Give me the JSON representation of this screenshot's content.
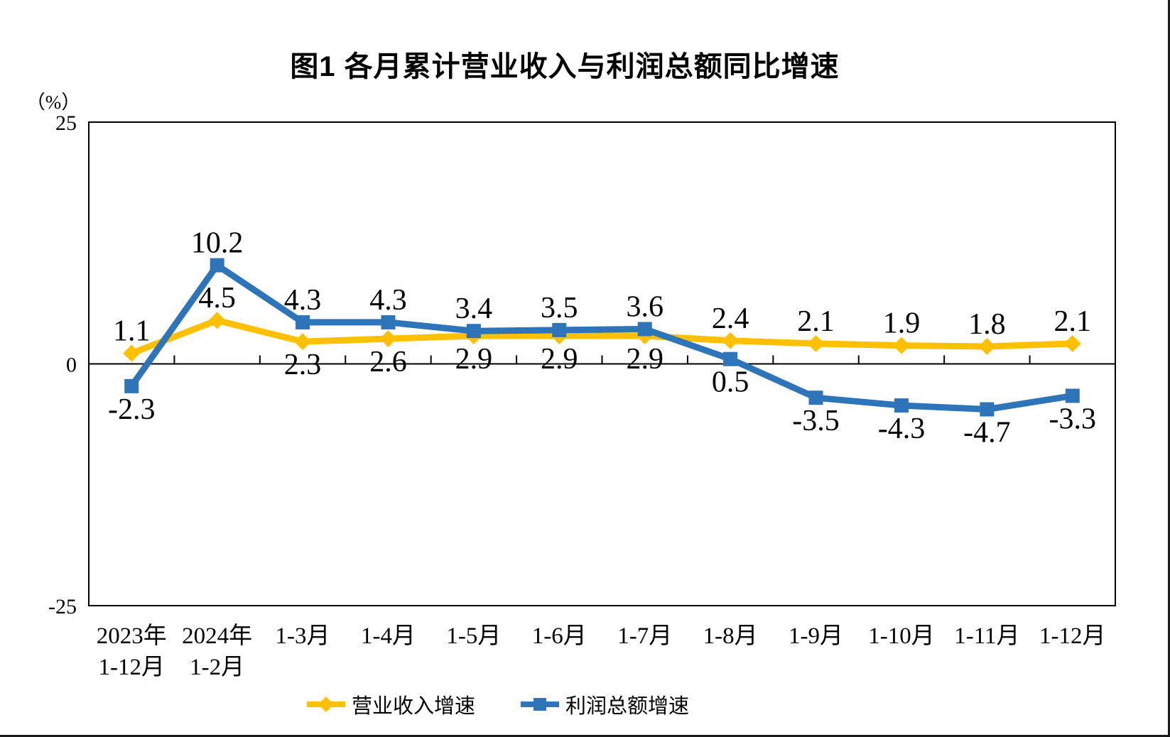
{
  "chart_data": {
    "type": "line",
    "title": "图1  各月累计营业收入与利润总额同比增速",
    "ylabel": "（%）",
    "xlabel": "",
    "ylim": [
      -25,
      25
    ],
    "yticks": [
      25,
      0,
      -25
    ],
    "ytick_labels": [
      "25",
      "0",
      "-25"
    ],
    "grid": false,
    "legend_position": "bottom",
    "categories": [
      [
        "2023年",
        "1-12月"
      ],
      [
        "2024年",
        "1-2月"
      ],
      [
        "1-3月"
      ],
      [
        "1-4月"
      ],
      [
        "1-5月"
      ],
      [
        "1-6月"
      ],
      [
        "1-7月"
      ],
      [
        "1-8月"
      ],
      [
        "1-9月"
      ],
      [
        "1-10月"
      ],
      [
        "1-11月"
      ],
      [
        "1-12月"
      ]
    ],
    "series": [
      {
        "key": "revenue-growth",
        "name": "营业收入增速",
        "color": "#FFC000",
        "marker": "diamond",
        "values": [
          1.1,
          4.5,
          2.3,
          2.6,
          2.9,
          2.9,
          2.9,
          2.4,
          2.1,
          1.9,
          1.8,
          2.1
        ],
        "label_positions": [
          "above",
          "above",
          "below",
          "below",
          "below",
          "below",
          "below",
          "above",
          "above",
          "above",
          "above",
          "above"
        ]
      },
      {
        "key": "profit-growth",
        "name": "利润总额增速",
        "color": "#2E74B9",
        "marker": "square",
        "values": [
          -2.3,
          10.2,
          4.3,
          4.3,
          3.4,
          3.5,
          3.6,
          0.5,
          -3.5,
          -4.3,
          -4.7,
          -3.3
        ],
        "label_positions": [
          "below",
          "above",
          "above",
          "above",
          "above",
          "above",
          "above",
          "below",
          "below",
          "below",
          "below",
          "below"
        ]
      }
    ]
  }
}
